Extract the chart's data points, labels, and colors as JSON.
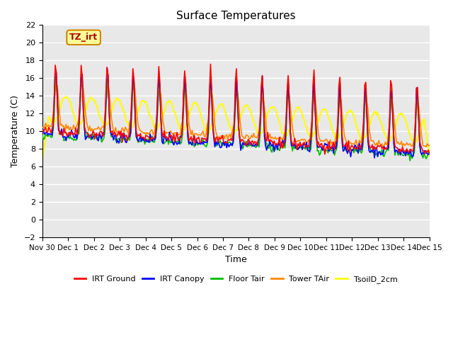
{
  "title": "Surface Temperatures",
  "xlabel": "Time",
  "ylabel": "Temperature (C)",
  "ylim": [
    -2,
    22
  ],
  "annotation_text": "TZ_irt",
  "annotation_bg": "#FFFF99",
  "annotation_border": "#CC8800",
  "background_color": "#E8E8E8",
  "grid_color": "white",
  "series_colors": {
    "IRT Ground": "#FF0000",
    "IRT Canopy": "#0000FF",
    "Floor Tair": "#00BB00",
    "Tower TAir": "#FF8800",
    "TsoilD_2cm": "#FFFF00"
  },
  "x_tick_labels": [
    "Nov 30",
    "Dec 1",
    "Dec 2",
    "Dec 3",
    "Dec 4",
    "Dec 5",
    "Dec 6",
    "Dec 7",
    "Dec 8",
    "Dec 9",
    "Dec 10",
    "Dec 11",
    "Dec 12",
    "Dec 13",
    "Dec 14",
    "Dec 15"
  ],
  "n_days": 15,
  "linewidth": 1.2
}
